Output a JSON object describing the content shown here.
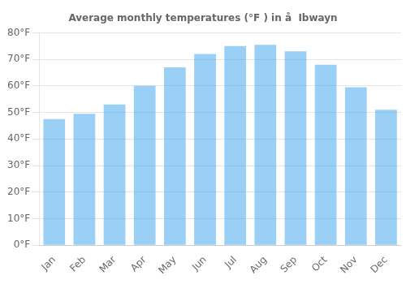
{
  "chart_data": {
    "type": "bar",
    "title": "Average monthly temperatures (°F ) in å  Ibwayn",
    "categories": [
      "Jan",
      "Feb",
      "Mar",
      "Apr",
      "May",
      "Jun",
      "Jul",
      "Aug",
      "Sep",
      "Oct",
      "Nov",
      "Dec"
    ],
    "values": [
      47.5,
      49.5,
      53.0,
      60.0,
      67.0,
      72.0,
      75.0,
      75.5,
      73.0,
      68.0,
      59.5,
      51.0
    ],
    "ylim": [
      0,
      80
    ],
    "yticks": [
      {
        "value": 0,
        "label": "0°F"
      },
      {
        "value": 10,
        "label": "10°F"
      },
      {
        "value": 20,
        "label": "20°F"
      },
      {
        "value": 30,
        "label": "30°F"
      },
      {
        "value": 40,
        "label": "40°F"
      },
      {
        "value": 50,
        "label": "50°F"
      },
      {
        "value": 60,
        "label": "60°F"
      },
      {
        "value": 70,
        "label": "70°F"
      },
      {
        "value": 80,
        "label": "80°F"
      }
    ],
    "grid": true
  }
}
